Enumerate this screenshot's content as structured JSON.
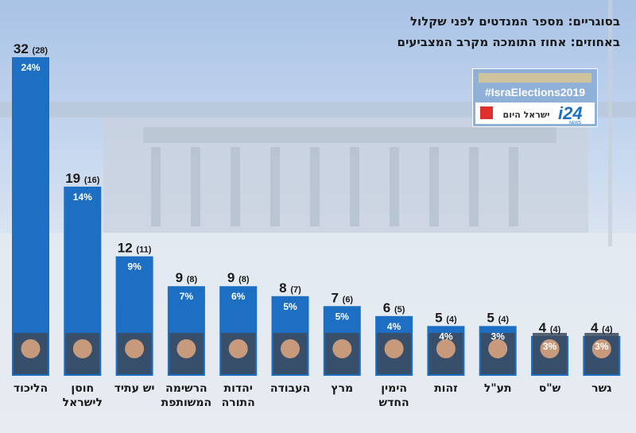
{
  "legend": {
    "line1": "בסוגריים: מספר המנדטים לפני שקלול",
    "line2": "באחוזים: אחוז התומכה מקרב המצביעים"
  },
  "logo": {
    "hashtag": "#IsraElections2019",
    "brand": "i24",
    "brand_sub": "NEWS",
    "partner": "ישראל היום"
  },
  "colors": {
    "bar": "#1c6fc3",
    "text": "#1a1a1a"
  },
  "chart_data": {
    "type": "bar",
    "categories": [
      "הליכוד",
      "חוסן לישראל",
      "יש עתיד",
      "הרשימה המשותפת",
      "יהדות התורה",
      "העבודה",
      "מרץ",
      "הימין החדש",
      "זהות",
      "תע\"ל",
      "ש\"ס",
      "גשר"
    ],
    "category_lines": [
      [
        "הליכוד"
      ],
      [
        "חוסן",
        "לישראל"
      ],
      [
        "יש עתיד"
      ],
      [
        "הרשימה",
        "המשותפת"
      ],
      [
        "יהדות",
        "התורה"
      ],
      [
        "העבודה"
      ],
      [
        "מרץ"
      ],
      [
        "הימין",
        "החדש"
      ],
      [
        "זהות"
      ],
      [
        "תע\"ל"
      ],
      [
        "ש\"ס"
      ],
      [
        "גשר"
      ]
    ],
    "series": [
      {
        "values": [
          32,
          19,
          12,
          9,
          9,
          8,
          7,
          6,
          5,
          5,
          4,
          4
        ]
      }
    ],
    "before_weighting": [
      "(28)",
      "(16)",
      "(11)",
      "(8)",
      "(8)",
      "(7)",
      "(6)",
      "(5)",
      "(4)",
      "(4)",
      "(4)",
      "(4)"
    ],
    "percent_labels": [
      "24%",
      "14%",
      "9%",
      "7%",
      "6%",
      "5%",
      "5%",
      "4%",
      "4%",
      "3%",
      "3%",
      "3%"
    ],
    "ylim": [
      0,
      32
    ],
    "grid": false,
    "legend_position": "top-right"
  }
}
